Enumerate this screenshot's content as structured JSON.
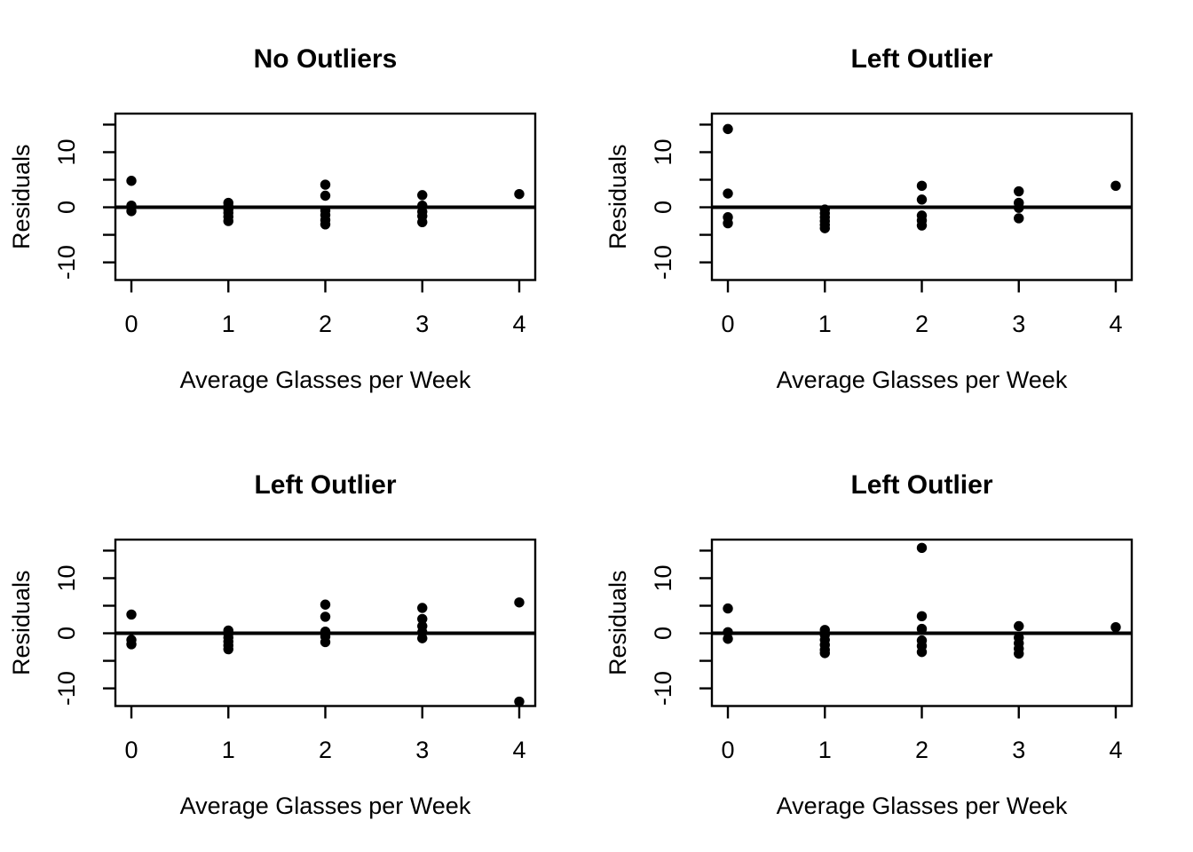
{
  "figure": {
    "background": "#ffffff",
    "foreground": "#000000",
    "marker": "filled-circle"
  },
  "chart_data": [
    {
      "type": "scatter",
      "title": "No Outliers",
      "xlabel": "Average Glasses per Week",
      "ylabel": "Residuals",
      "xlim": [
        -0.165,
        4.165
      ],
      "ylim": [
        -13.2,
        17
      ],
      "xticks": [
        0,
        1,
        2,
        3,
        4
      ],
      "yticks": [
        -10,
        -5,
        0,
        5,
        10,
        15
      ],
      "ylabeled": [
        -10,
        0,
        10
      ],
      "hline": 0,
      "grid": false,
      "legend": false,
      "points": [
        [
          0,
          4.8
        ],
        [
          0,
          0.3
        ],
        [
          0,
          -0.7
        ],
        [
          1,
          0.8
        ],
        [
          1,
          0.2
        ],
        [
          1,
          -0.4
        ],
        [
          1,
          -1.0
        ],
        [
          1,
          -1.7
        ],
        [
          1,
          -2.5
        ],
        [
          2,
          4.1
        ],
        [
          2,
          2.1
        ],
        [
          2,
          -0.6
        ],
        [
          2,
          -1.4
        ],
        [
          2,
          -2.3
        ],
        [
          2,
          -3.1
        ],
        [
          3,
          2.2
        ],
        [
          3,
          0.3
        ],
        [
          3,
          -0.8
        ],
        [
          3,
          -1.6
        ],
        [
          3,
          -2.7
        ],
        [
          4,
          2.4
        ]
      ]
    },
    {
      "type": "scatter",
      "title": "Left Outlier",
      "xlabel": "Average Glasses per Week",
      "ylabel": "Residuals",
      "xlim": [
        -0.165,
        4.165
      ],
      "ylim": [
        -13.2,
        17
      ],
      "xticks": [
        0,
        1,
        2,
        3,
        4
      ],
      "yticks": [
        -10,
        -5,
        0,
        5,
        10,
        15
      ],
      "ylabeled": [
        -10,
        0,
        10
      ],
      "hline": 0,
      "grid": false,
      "legend": false,
      "points": [
        [
          0,
          14.2
        ],
        [
          0,
          2.5
        ],
        [
          0,
          -1.8
        ],
        [
          0,
          -2.9
        ],
        [
          1,
          -0.4
        ],
        [
          1,
          -1.1
        ],
        [
          1,
          -1.8
        ],
        [
          1,
          -2.5
        ],
        [
          1,
          -3.2
        ],
        [
          1,
          -3.8
        ],
        [
          2,
          3.9
        ],
        [
          2,
          1.4
        ],
        [
          2,
          -1.5
        ],
        [
          2,
          -2.4
        ],
        [
          2,
          -3.3
        ],
        [
          3,
          2.9
        ],
        [
          3,
          0.8
        ],
        [
          3,
          -0.1
        ],
        [
          3,
          -2.0
        ],
        [
          4,
          3.9
        ]
      ]
    },
    {
      "type": "scatter",
      "title": "Left Outlier",
      "xlabel": "Average Glasses per Week",
      "ylabel": "Residuals",
      "xlim": [
        -0.165,
        4.165
      ],
      "ylim": [
        -13.2,
        17
      ],
      "xticks": [
        0,
        1,
        2,
        3,
        4
      ],
      "yticks": [
        -10,
        -5,
        0,
        5,
        10,
        15
      ],
      "ylabeled": [
        -10,
        0,
        10
      ],
      "hline": 0,
      "grid": false,
      "legend": false,
      "points": [
        [
          0,
          3.4
        ],
        [
          0,
          -1.2
        ],
        [
          0,
          -2.0
        ],
        [
          1,
          0.5
        ],
        [
          1,
          -0.1
        ],
        [
          1,
          -0.8
        ],
        [
          1,
          -1.5
        ],
        [
          1,
          -2.2
        ],
        [
          1,
          -2.9
        ],
        [
          2,
          5.2
        ],
        [
          2,
          3.0
        ],
        [
          2,
          0.3
        ],
        [
          2,
          -0.6
        ],
        [
          2,
          -1.6
        ],
        [
          3,
          4.6
        ],
        [
          3,
          2.6
        ],
        [
          3,
          1.3
        ],
        [
          3,
          0.2
        ],
        [
          3,
          -0.9
        ],
        [
          4,
          5.6
        ],
        [
          4,
          -12.4
        ]
      ]
    },
    {
      "type": "scatter",
      "title": "Left Outlier",
      "xlabel": "Average Glasses per Week",
      "ylabel": "Residuals",
      "xlim": [
        -0.165,
        4.165
      ],
      "ylim": [
        -13.2,
        17
      ],
      "xticks": [
        0,
        1,
        2,
        3,
        4
      ],
      "yticks": [
        -10,
        -5,
        0,
        5,
        10,
        15
      ],
      "ylabeled": [
        -10,
        0,
        10
      ],
      "hline": 0,
      "grid": false,
      "legend": false,
      "points": [
        [
          0,
          4.5
        ],
        [
          0,
          0.2
        ],
        [
          0,
          -1.0
        ],
        [
          1,
          0.6
        ],
        [
          1,
          -0.3
        ],
        [
          1,
          -1.2
        ],
        [
          1,
          -2.1
        ],
        [
          1,
          -3.0
        ],
        [
          1,
          -3.6
        ],
        [
          2,
          15.5
        ],
        [
          2,
          3.1
        ],
        [
          2,
          0.8
        ],
        [
          2,
          -1.3
        ],
        [
          2,
          -2.3
        ],
        [
          2,
          -3.4
        ],
        [
          3,
          1.3
        ],
        [
          3,
          -0.8
        ],
        [
          3,
          -1.8
        ],
        [
          3,
          -2.8
        ],
        [
          3,
          -3.7
        ],
        [
          4,
          1.1
        ]
      ]
    }
  ]
}
